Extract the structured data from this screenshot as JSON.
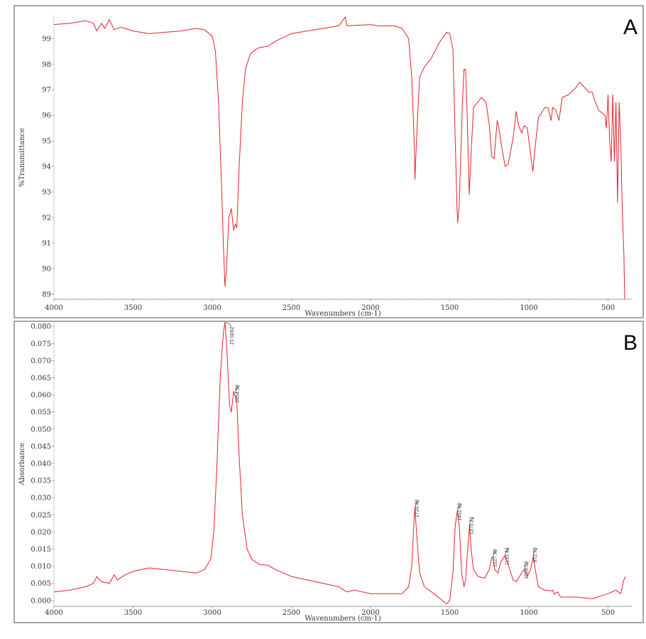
{
  "chart_data": [
    {
      "type": "line",
      "panel_label": "A",
      "xlabel": "Wavenumbers (cm-1)",
      "ylabel": "%Transmittance",
      "xlim": [
        4000,
        350
      ],
      "ylim": [
        88.8,
        99.9
      ],
      "x_reversed": true,
      "xticks": [
        4000,
        3500,
        3000,
        2500,
        2000,
        1500,
        1000,
        500
      ],
      "yticks": [
        89,
        90,
        91,
        92,
        93,
        94,
        95,
        96,
        97,
        98,
        99
      ],
      "ytick_labels": [
        "89",
        "90",
        "91",
        "92",
        "93",
        "94",
        "95",
        "96",
        "97",
        "98",
        "99"
      ],
      "line_color": "#e8202a",
      "points": [
        [
          4000,
          99.55
        ],
        [
          3900,
          99.6
        ],
        [
          3800,
          99.7
        ],
        [
          3750,
          99.6
        ],
        [
          3730,
          99.3
        ],
        [
          3700,
          99.6
        ],
        [
          3680,
          99.4
        ],
        [
          3650,
          99.75
        ],
        [
          3620,
          99.35
        ],
        [
          3580,
          99.45
        ],
        [
          3550,
          99.4
        ],
        [
          3500,
          99.3
        ],
        [
          3400,
          99.2
        ],
        [
          3200,
          99.3
        ],
        [
          3100,
          99.4
        ],
        [
          3050,
          99.35
        ],
        [
          3000,
          99.1
        ],
        [
          2980,
          98.5
        ],
        [
          2960,
          96.5
        ],
        [
          2940,
          93
        ],
        [
          2930,
          91
        ],
        [
          2920,
          89.3
        ],
        [
          2910,
          90
        ],
        [
          2895,
          92.0
        ],
        [
          2880,
          92.35
        ],
        [
          2865,
          91.5
        ],
        [
          2855,
          91.75
        ],
        [
          2845,
          91.6
        ],
        [
          2830,
          94
        ],
        [
          2810,
          96.5
        ],
        [
          2790,
          97.8
        ],
        [
          2760,
          98.4
        ],
        [
          2720,
          98.6
        ],
        [
          2700,
          98.65
        ],
        [
          2650,
          98.7
        ],
        [
          2600,
          98.9
        ],
        [
          2500,
          99.2
        ],
        [
          2300,
          99.4
        ],
        [
          2200,
          99.5
        ],
        [
          2160,
          99.85
        ],
        [
          2150,
          99.5
        ],
        [
          2000,
          99.55
        ],
        [
          1950,
          99.5
        ],
        [
          1850,
          99.5
        ],
        [
          1800,
          99.4
        ],
        [
          1760,
          99.0
        ],
        [
          1740,
          97.5
        ],
        [
          1725,
          95
        ],
        [
          1720,
          93.5
        ],
        [
          1710,
          95.0
        ],
        [
          1700,
          96.3
        ],
        [
          1690,
          97.5
        ],
        [
          1660,
          97.9
        ],
        [
          1620,
          98.2
        ],
        [
          1560,
          98.9
        ],
        [
          1520,
          99.25
        ],
        [
          1500,
          99.2
        ],
        [
          1480,
          98.6
        ],
        [
          1465,
          95
        ],
        [
          1455,
          92.5
        ],
        [
          1450,
          91.8
        ],
        [
          1440,
          92.5
        ],
        [
          1420,
          96.5
        ],
        [
          1410,
          97.8
        ],
        [
          1400,
          97.8
        ],
        [
          1390,
          96
        ],
        [
          1377,
          92.9
        ],
        [
          1365,
          94.5
        ],
        [
          1350,
          96.3
        ],
        [
          1300,
          96.7
        ],
        [
          1270,
          96.5
        ],
        [
          1250,
          95.6
        ],
        [
          1235,
          94.4
        ],
        [
          1220,
          94.3
        ],
        [
          1200,
          95.8
        ],
        [
          1190,
          95.5
        ],
        [
          1170,
          94.7
        ],
        [
          1150,
          94.0
        ],
        [
          1130,
          94.1
        ],
        [
          1100,
          95.1
        ],
        [
          1080,
          96.15
        ],
        [
          1065,
          95.6
        ],
        [
          1045,
          95.3
        ],
        [
          1030,
          95.6
        ],
        [
          1010,
          95.5
        ],
        [
          990,
          94.5
        ],
        [
          975,
          93.8
        ],
        [
          960,
          94.8
        ],
        [
          940,
          95.9
        ],
        [
          900,
          96.3
        ],
        [
          880,
          96.3
        ],
        [
          860,
          95.8
        ],
        [
          850,
          96.3
        ],
        [
          830,
          96.2
        ],
        [
          810,
          95.8
        ],
        [
          790,
          96.7
        ],
        [
          750,
          96.8
        ],
        [
          700,
          97.1
        ],
        [
          680,
          97.3
        ],
        [
          620,
          96.9
        ],
        [
          600,
          96.9
        ],
        [
          580,
          96.5
        ],
        [
          560,
          96.2
        ],
        [
          520,
          96.0
        ],
        [
          510,
          95.5
        ],
        [
          500,
          96.8
        ],
        [
          490,
          95.0
        ],
        [
          480,
          94.2
        ],
        [
          470,
          96.8
        ],
        [
          460,
          94.2
        ],
        [
          450,
          96.5
        ],
        [
          440,
          92.6
        ],
        [
          430,
          96.5
        ],
        [
          420,
          95.0
        ],
        [
          410,
          92.3
        ],
        [
          400,
          90.6
        ],
        [
          395,
          88.8
        ]
      ]
    },
    {
      "type": "line",
      "panel_label": "B",
      "xlabel": "Wavenumbers (cm-1)",
      "ylabel": "Absorbance",
      "xlim": [
        4000,
        350
      ],
      "ylim": [
        -0.0017,
        0.0815
      ],
      "x_reversed": true,
      "xticks": [
        4000,
        3500,
        3000,
        2500,
        2000,
        1500,
        1000,
        500
      ],
      "yticks": [
        0.0,
        0.005,
        0.01,
        0.015,
        0.02,
        0.025,
        0.03,
        0.035,
        0.04,
        0.045,
        0.05,
        0.055,
        0.06,
        0.065,
        0.07,
        0.075,
        0.08
      ],
      "ytick_labels": [
        "0.000",
        "0.005",
        "0.010",
        "0.015",
        "0.020",
        "0.025",
        "0.030",
        "0.035",
        "0.040",
        "0.045",
        "0.050",
        "0.055",
        "0.060",
        "0.065",
        "0.070",
        "0.075",
        "0.080"
      ],
      "line_color": "#e8202a",
      "peak_labels": [
        {
          "x": 2920.12,
          "y": 0.0812,
          "text": "2920.12"
        },
        {
          "x": 2854.38,
          "y": 0.0605,
          "text": "2854.38"
        },
        {
          "x": 1720.46,
          "y": 0.027,
          "text": "1720.46"
        },
        {
          "x": 1451.66,
          "y": 0.026,
          "text": "1451.66"
        },
        {
          "x": 1375.21,
          "y": 0.022,
          "text": "1375.21"
        },
        {
          "x": 1227.38,
          "y": 0.0125,
          "text": "1227.38"
        },
        {
          "x": 1151.44,
          "y": 0.013,
          "text": "1151.44"
        },
        {
          "x": 1028.59,
          "y": 0.009,
          "text": "1028.59"
        },
        {
          "x": 972.79,
          "y": 0.013,
          "text": "972.79"
        }
      ],
      "points": [
        [
          4000,
          0.0025
        ],
        [
          3900,
          0.003
        ],
        [
          3800,
          0.004
        ],
        [
          3750,
          0.005
        ],
        [
          3730,
          0.007
        ],
        [
          3700,
          0.0055
        ],
        [
          3650,
          0.005
        ],
        [
          3620,
          0.0075
        ],
        [
          3600,
          0.006
        ],
        [
          3550,
          0.0075
        ],
        [
          3500,
          0.0085
        ],
        [
          3400,
          0.0095
        ],
        [
          3200,
          0.0085
        ],
        [
          3100,
          0.008
        ],
        [
          3050,
          0.009
        ],
        [
          3010,
          0.012
        ],
        [
          2990,
          0.02
        ],
        [
          2970,
          0.04
        ],
        [
          2950,
          0.065
        ],
        [
          2930,
          0.078
        ],
        [
          2920,
          0.0812
        ],
        [
          2910,
          0.075
        ],
        [
          2890,
          0.057
        ],
        [
          2880,
          0.055
        ],
        [
          2865,
          0.061
        ],
        [
          2855,
          0.0595
        ],
        [
          2845,
          0.058
        ],
        [
          2830,
          0.042
        ],
        [
          2810,
          0.025
        ],
        [
          2780,
          0.015
        ],
        [
          2750,
          0.012
        ],
        [
          2700,
          0.0105
        ],
        [
          2650,
          0.0103
        ],
        [
          2600,
          0.009
        ],
        [
          2500,
          0.007
        ],
        [
          2300,
          0.005
        ],
        [
          2200,
          0.004
        ],
        [
          2150,
          0.0025
        ],
        [
          2100,
          0.003
        ],
        [
          2000,
          0.002
        ],
        [
          1900,
          0.002
        ],
        [
          1800,
          0.002
        ],
        [
          1760,
          0.004
        ],
        [
          1740,
          0.01
        ],
        [
          1725,
          0.024
        ],
        [
          1720,
          0.027
        ],
        [
          1710,
          0.02
        ],
        [
          1700,
          0.014
        ],
        [
          1690,
          0.008
        ],
        [
          1660,
          0.004
        ],
        [
          1600,
          0.002
        ],
        [
          1520,
          -0.001
        ],
        [
          1500,
          0.0
        ],
        [
          1480,
          0.008
        ],
        [
          1465,
          0.022
        ],
        [
          1452,
          0.026
        ],
        [
          1440,
          0.022
        ],
        [
          1425,
          0.008
        ],
        [
          1410,
          0.004
        ],
        [
          1400,
          0.006
        ],
        [
          1385,
          0.016
        ],
        [
          1375,
          0.022
        ],
        [
          1365,
          0.015
        ],
        [
          1350,
          0.009
        ],
        [
          1320,
          0.007
        ],
        [
          1280,
          0.0065
        ],
        [
          1250,
          0.009
        ],
        [
          1235,
          0.0125
        ],
        [
          1227,
          0.0125
        ],
        [
          1215,
          0.009
        ],
        [
          1195,
          0.008
        ],
        [
          1180,
          0.011
        ],
        [
          1160,
          0.0125
        ],
        [
          1151,
          0.013
        ],
        [
          1130,
          0.0105
        ],
        [
          1100,
          0.006
        ],
        [
          1080,
          0.0055
        ],
        [
          1060,
          0.007
        ],
        [
          1040,
          0.0085
        ],
        [
          1028,
          0.009
        ],
        [
          1010,
          0.007
        ],
        [
          990,
          0.009
        ],
        [
          972,
          0.013
        ],
        [
          960,
          0.009
        ],
        [
          940,
          0.004
        ],
        [
          900,
          0.003
        ],
        [
          860,
          0.0028
        ],
        [
          850,
          0.003
        ],
        [
          840,
          0.0018
        ],
        [
          820,
          0.0025
        ],
        [
          800,
          0.001
        ],
        [
          700,
          0.001
        ],
        [
          600,
          0.0005
        ],
        [
          500,
          0.002
        ],
        [
          450,
          0.003
        ],
        [
          420,
          0.002
        ],
        [
          400,
          0.006
        ],
        [
          390,
          0.007
        ]
      ]
    }
  ]
}
